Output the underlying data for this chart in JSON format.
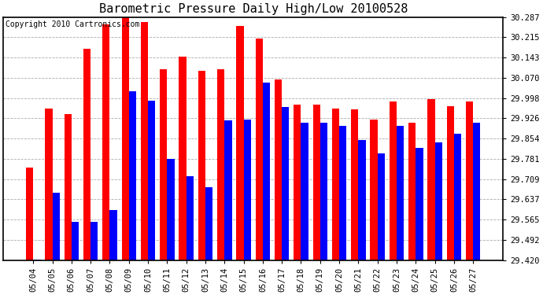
{
  "title": "Barometric Pressure Daily High/Low 20100528",
  "copyright": "Copyright 2010 Cartronics.com",
  "dates": [
    "05/04",
    "05/05",
    "05/06",
    "05/07",
    "05/08",
    "05/09",
    "05/10",
    "05/11",
    "05/12",
    "05/13",
    "05/14",
    "05/15",
    "05/16",
    "05/17",
    "05/18",
    "05/19",
    "05/20",
    "05/21",
    "05/22",
    "05/23",
    "05/24",
    "05/25",
    "05/26",
    "05/27"
  ],
  "highs": [
    29.75,
    29.96,
    29.94,
    30.175,
    30.26,
    30.285,
    30.27,
    30.1,
    30.145,
    30.095,
    30.1,
    30.255,
    30.21,
    30.065,
    29.975,
    29.975,
    29.96,
    29.958,
    29.92,
    29.985,
    29.91,
    29.995,
    29.97,
    29.985
  ],
  "lows": [
    29.422,
    29.66,
    29.556,
    29.556,
    29.598,
    30.022,
    29.99,
    29.78,
    29.718,
    29.68,
    29.918,
    29.92,
    30.052,
    29.965,
    29.91,
    29.91,
    29.898,
    29.848,
    29.8,
    29.898,
    29.82,
    29.84,
    29.87,
    29.91
  ],
  "high_color": "#ff0000",
  "low_color": "#0000ff",
  "background_color": "#ffffff",
  "plot_bg_color": "#ffffff",
  "grid_color": "#888888",
  "ylim_min": 29.42,
  "ylim_max": 30.287,
  "yticks": [
    29.42,
    29.492,
    29.565,
    29.637,
    29.709,
    29.781,
    29.854,
    29.926,
    29.998,
    30.07,
    30.143,
    30.215,
    30.287
  ],
  "title_fontsize": 11,
  "copyright_fontsize": 7,
  "tick_fontsize": 7.5,
  "bar_width": 0.38
}
